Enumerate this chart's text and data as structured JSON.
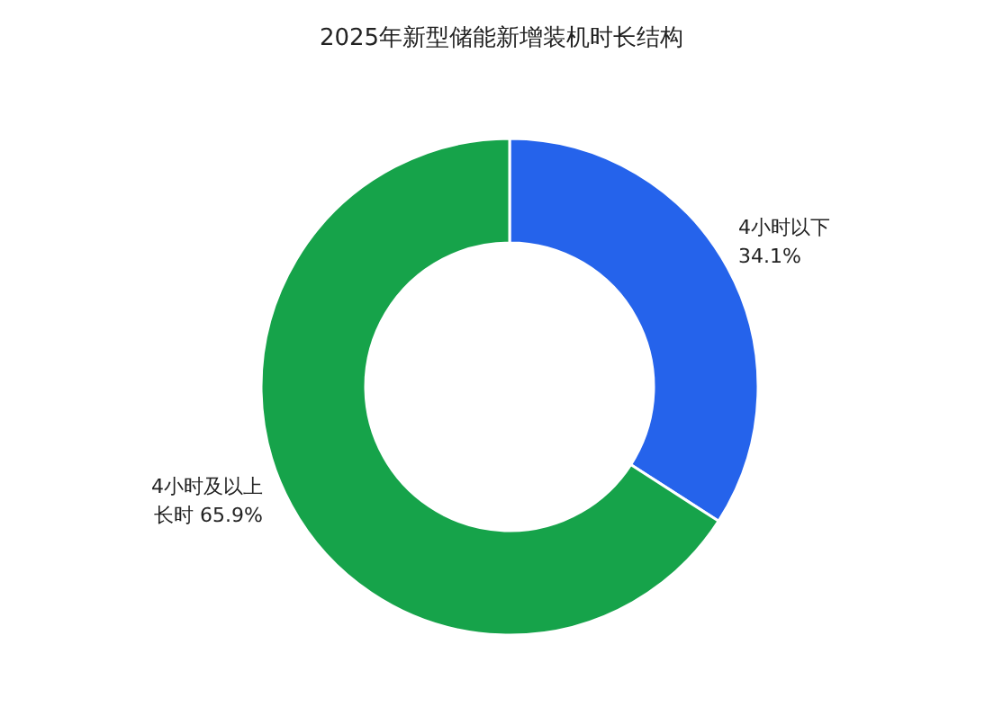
{
  "chart_data": {
    "type": "donut",
    "title": "2025年新型储能新增装机时长结构",
    "categories": [
      "4小时以下",
      "4小时及以上长时"
    ],
    "values": [
      34.1,
      65.9
    ],
    "colors": [
      "#2563eb",
      "#16a34a"
    ],
    "value_labels": [
      "34.1%",
      "65.9%"
    ],
    "legend": false
  }
}
